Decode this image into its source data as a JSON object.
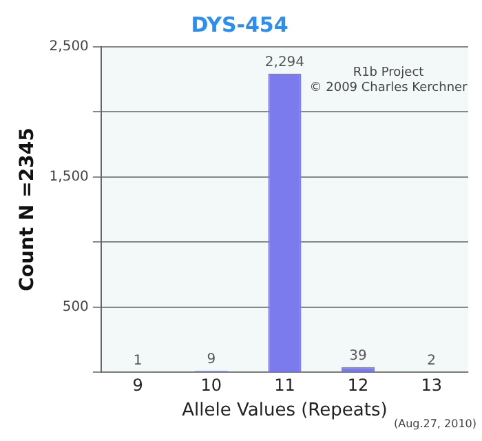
{
  "chart_data": {
    "type": "bar",
    "title": "DYS-454",
    "xlabel": "Allele Values (Repeats)",
    "ylabel": "Count N =2345",
    "categories": [
      "9",
      "10",
      "11",
      "12",
      "13"
    ],
    "values": [
      1,
      9,
      2294,
      39,
      2
    ],
    "color": "#7b7bee",
    "value_labels": [
      "1",
      "9",
      "2,294",
      "39",
      "2"
    ],
    "ylim": [
      0,
      2500
    ],
    "yticks": [
      {
        "value": 0,
        "label": null
      },
      500,
      {
        "value": 1000,
        "label": null
      },
      {
        "value": 1500,
        "label": "1,500"
      },
      {
        "value": 2000,
        "label": null
      },
      {
        "value": 2500,
        "label": "2,500"
      }
    ],
    "grid": "y",
    "legend": false,
    "annotations": [
      "R1b Project",
      "© 2009 Charles Kerchner",
      "(Aug.27, 2010)"
    ]
  }
}
